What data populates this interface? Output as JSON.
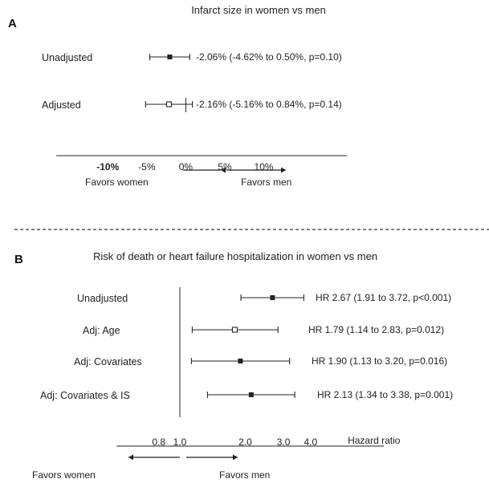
{
  "chart_data": [
    {
      "type": "forest",
      "panel": "A",
      "title": "Infarct size in women vs men",
      "scale": "linear",
      "xlim": [
        -12,
        12
      ],
      "reference": 0,
      "ticks": [
        {
          "value": -10,
          "label": "-10%"
        },
        {
          "value": -5,
          "label": "-5%"
        },
        {
          "value": 0,
          "label": "0%"
        },
        {
          "value": 5,
          "label": "5%"
        },
        {
          "value": 10,
          "label": "10%"
        }
      ],
      "rows": [
        {
          "label": "Unadjusted",
          "estimate": -2.06,
          "lower": -4.62,
          "upper": 0.5,
          "marker": "filled",
          "ci_text": "-2.06% (-4.62% to 0.50%, p=0.10)"
        },
        {
          "label": "Adjusted",
          "estimate": -2.16,
          "lower": -5.16,
          "upper": 0.84,
          "marker": "open",
          "ci_text": "-2.16% (-5.16% to 0.84%, p=0.14)"
        }
      ],
      "favors_left": "Favors women",
      "favors_right": "Favors men",
      "xlabel": ""
    },
    {
      "type": "forest",
      "panel": "B",
      "title": "Risk of death or heart failure hospitalization in women vs men",
      "scale": "log",
      "xlim": [
        0.65,
        5.2
      ],
      "reference": 1.0,
      "ticks": [
        {
          "value": 0.8,
          "label": "0.8"
        },
        {
          "value": 1.0,
          "label": "1.0"
        },
        {
          "value": 2.0,
          "label": "2.0"
        },
        {
          "value": 3.0,
          "label": "3.0"
        },
        {
          "value": 4.0,
          "label": "4.0"
        }
      ],
      "rows": [
        {
          "label": "Unadjusted",
          "estimate": 2.67,
          "lower": 1.91,
          "upper": 3.72,
          "marker": "filled",
          "ci_text": "HR 2.67 (1.91 to 3.72, p<0.001)"
        },
        {
          "label": "Adj: Age",
          "estimate": 1.79,
          "lower": 1.14,
          "upper": 2.83,
          "marker": "open",
          "ci_text": "HR 1.79 (1.14 to 2.83, p=0.012)"
        },
        {
          "label": "Adj: Covariates",
          "estimate": 1.9,
          "lower": 1.13,
          "upper": 3.2,
          "marker": "filled",
          "ci_text": "HR 1.90 (1.13 to 3.20, p=0.016)"
        },
        {
          "label": "Adj: Covariates & IS",
          "estimate": 2.13,
          "lower": 1.34,
          "upper": 3.38,
          "marker": "filled",
          "ci_text": "HR 2.13 (1.34 to 3.38, p=0.001)"
        }
      ],
      "favors_left": "Favors women",
      "favors_right": "Favors men",
      "xlabel": "Hazard ratio"
    }
  ]
}
